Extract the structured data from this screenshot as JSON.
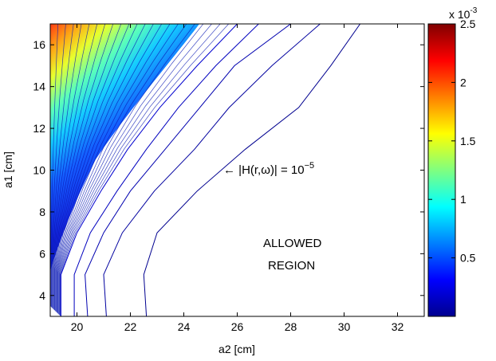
{
  "chart_data": {
    "type": "contour",
    "xlabel": "a2 [cm]",
    "ylabel": "a1 [cm]",
    "xlim": [
      19,
      33
    ],
    "ylim": [
      3,
      17
    ],
    "xticks": [
      20,
      22,
      24,
      26,
      28,
      30,
      32
    ],
    "yticks": [
      4,
      6,
      8,
      10,
      12,
      14,
      16
    ],
    "grid": false,
    "colorbar": {
      "colormap": "jet",
      "range": [
        0,
        0.0025
      ],
      "ticks": [
        {
          "value": 0.0005,
          "label": "0.5"
        },
        {
          "value": 0.001,
          "label": "1"
        },
        {
          "value": 0.0015,
          "label": "1.5"
        },
        {
          "value": 0.002,
          "label": "2"
        },
        {
          "value": 0.0025,
          "label": "2.5"
        }
      ],
      "exponent_label": "x 10",
      "exponent": "-3"
    },
    "contour_series": [
      {
        "level": 1e-05,
        "color": "#00008f",
        "points": [
          [
            22.6,
            3
          ],
          [
            22.5,
            5
          ],
          [
            23.0,
            7
          ],
          [
            24.5,
            9
          ],
          [
            26.3,
            11
          ],
          [
            28.3,
            13
          ],
          [
            29.5,
            15
          ],
          [
            30.6,
            17
          ]
        ]
      },
      {
        "level": 5.5e-05,
        "color": "#00009f",
        "points": [
          [
            21.1,
            3
          ],
          [
            21.0,
            5
          ],
          [
            21.7,
            7
          ],
          [
            22.9,
            9
          ],
          [
            24.4,
            11
          ],
          [
            25.7,
            13
          ],
          [
            27.3,
            15
          ],
          [
            29.1,
            17
          ]
        ]
      },
      {
        "level": 0.0001,
        "color": "#0000af",
        "points": [
          [
            20.4,
            3
          ],
          [
            20.3,
            5
          ],
          [
            21.0,
            7
          ],
          [
            22.0,
            9
          ],
          [
            23.3,
            11
          ],
          [
            24.6,
            13
          ],
          [
            25.9,
            15
          ],
          [
            28.0,
            17
          ]
        ]
      },
      {
        "level": 0.000145,
        "color": "#0000bf",
        "points": [
          [
            19.9,
            3
          ],
          [
            19.9,
            5
          ],
          [
            20.5,
            7
          ],
          [
            21.5,
            9
          ],
          [
            22.6,
            11
          ],
          [
            23.8,
            13
          ],
          [
            25.2,
            15
          ],
          [
            26.8,
            17
          ]
        ]
      },
      {
        "level": 0.00019,
        "color": "#0000cf",
        "points": [
          [
            19.4,
            3
          ],
          [
            19.4,
            5
          ],
          [
            20.0,
            7
          ],
          [
            20.9,
            9
          ],
          [
            21.9,
            11
          ],
          [
            23.1,
            13
          ],
          [
            24.5,
            15
          ],
          [
            26.0,
            17
          ]
        ]
      }
    ],
    "annotations": [
      {
        "text": "←  |H(r,ω)| = 10",
        "superscript": "−5",
        "x": 25.5,
        "y": 10
      },
      {
        "text": "ALLOWED",
        "x": 28.9,
        "y": 6.7
      },
      {
        "text": "REGION",
        "x": 28.8,
        "y": 5.7
      }
    ]
  }
}
